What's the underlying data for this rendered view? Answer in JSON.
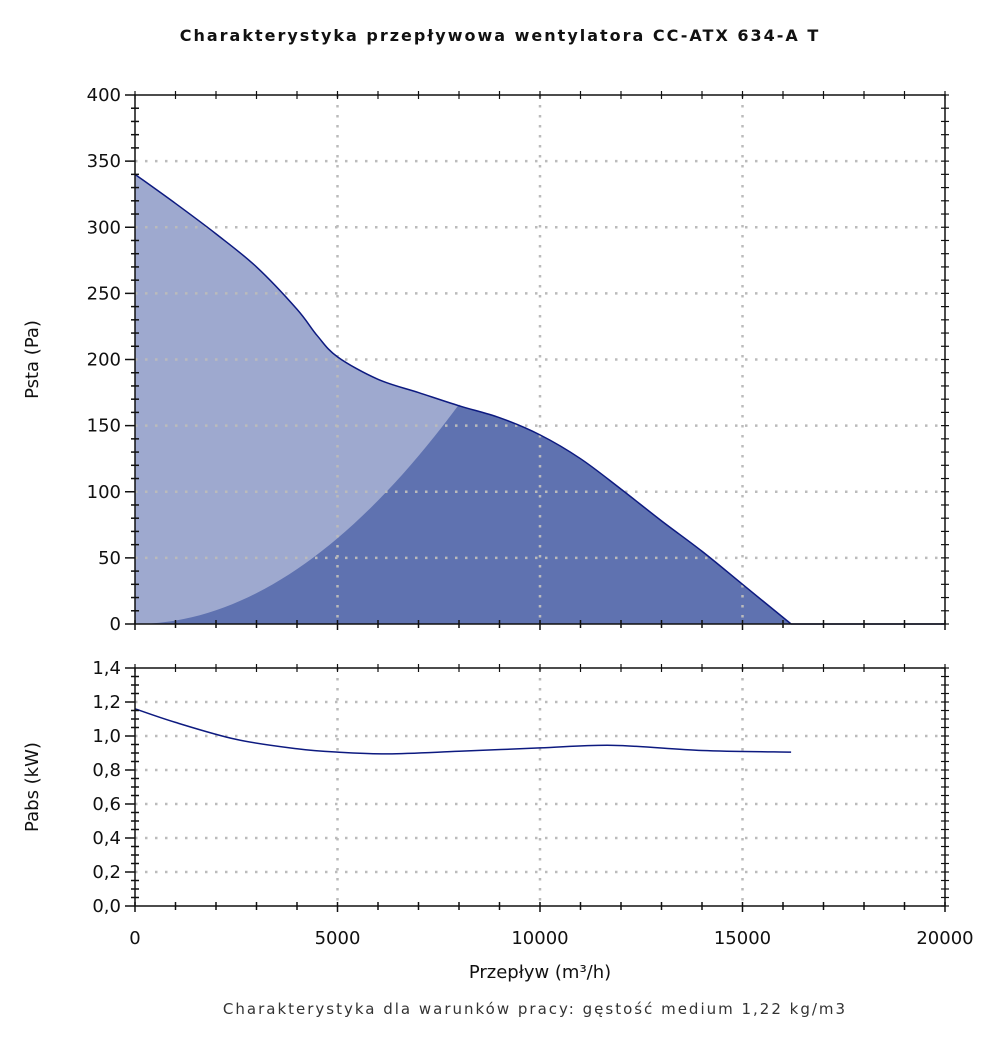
{
  "title": "Charakterystyka przepływowa wentylatora CC-ATX 634-A T",
  "footnote": "Charakterystyka dla warunków pracy: gęstość medium 1,22 kg/m3",
  "colors": {
    "line": "#0d1a80",
    "light_fill": "#9ea9cf",
    "dark_fill": "#5f72b0",
    "grid": "#bbbbbb"
  },
  "chart_data": [
    {
      "type": "area",
      "title": "Charakterystyka przepływowa wentylatora CC-ATX 634-A T",
      "xlabel": "Przepływ (m³/h)",
      "ylabel": "Psta (Pa)",
      "xlim": [
        0,
        20000
      ],
      "ylim": [
        0,
        400
      ],
      "yticks": [
        "0",
        "50",
        "100",
        "150",
        "200",
        "250",
        "300",
        "350",
        "400"
      ],
      "grid": true,
      "series": [
        {
          "name": "fan curve",
          "x": [
            0,
            1000,
            2000,
            3000,
            4000,
            4500,
            5000,
            6000,
            7000,
            8000,
            9000,
            10000,
            11000,
            12000,
            13000,
            14000,
            15000,
            16200
          ],
          "y": [
            340,
            318,
            295,
            270,
            238,
            218,
            202,
            185,
            175,
            165,
            156,
            143,
            125,
            102,
            78,
            55,
            30,
            0
          ]
        },
        {
          "name": "system curve",
          "formula_k": 2.59375e-06,
          "x_end": 8000,
          "y_end": 166
        }
      ]
    },
    {
      "type": "line",
      "xlabel": "Przepływ (m³/h)",
      "ylabel": "Pabs (kW)",
      "xlim": [
        0,
        20000
      ],
      "ylim": [
        0,
        1.4
      ],
      "xticks": [
        "0",
        "5000",
        "10000",
        "15000",
        "20000"
      ],
      "yticks": [
        "0,0",
        "0,2",
        "0,4",
        "0,6",
        "0,8",
        "1,0",
        "1,2",
        "1,4"
      ],
      "grid": true,
      "series": [
        {
          "name": "power",
          "x": [
            0,
            1000,
            2500,
            4000,
            5000,
            6250,
            8000,
            10000,
            11800,
            14000,
            16200
          ],
          "y": [
            1.16,
            1.08,
            0.98,
            0.925,
            0.905,
            0.895,
            0.91,
            0.93,
            0.945,
            0.915,
            0.905
          ]
        }
      ]
    }
  ]
}
